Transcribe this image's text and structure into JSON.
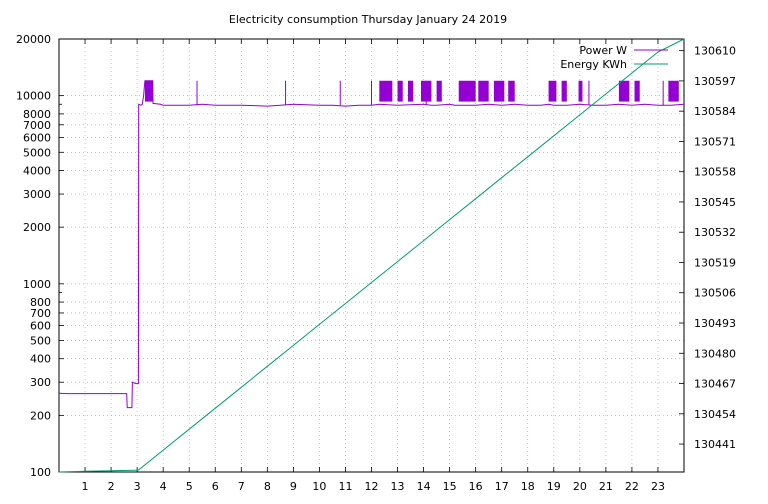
{
  "chart_data": {
    "type": "line",
    "title": "Electricity consumption Thursday January 24 2019",
    "xlabel": "",
    "ylabel": "",
    "y2label": "",
    "grid": true,
    "legend_position": "top-right",
    "x_range": [
      0,
      24
    ],
    "x_ticks": [
      1,
      2,
      3,
      4,
      5,
      6,
      7,
      8,
      9,
      10,
      11,
      12,
      13,
      14,
      15,
      16,
      17,
      18,
      19,
      20,
      21,
      22,
      23
    ],
    "y_scale": "log",
    "y_range": [
      100,
      20000
    ],
    "y_ticks": [
      100,
      200,
      300,
      400,
      500,
      600,
      700,
      800,
      1000,
      2000,
      3000,
      4000,
      5000,
      6000,
      7000,
      8000,
      10000,
      20000
    ],
    "y2_scale": "linear",
    "y2_range": [
      130429,
      130615
    ],
    "y2_ticks": [
      130441,
      130454,
      130467,
      130480,
      130493,
      130506,
      130519,
      130532,
      130545,
      130558,
      130571,
      130584,
      130597,
      130610
    ],
    "series": [
      {
        "name": "Power W",
        "axis": "y",
        "color": "#9400d3",
        "x": [
          0,
          0.3,
          1.0,
          2.0,
          2.6,
          2.62,
          2.8,
          2.82,
          2.95,
          3.05,
          3.06,
          3.15,
          3.2,
          3.25,
          3.3,
          3.6,
          3.61,
          3.9,
          4,
          5,
          5.5,
          6,
          7,
          8,
          8.5,
          9,
          10,
          10.5,
          11,
          11.5,
          12,
          12.3,
          13,
          14,
          14.3,
          14.5,
          15,
          15.2,
          16,
          16.5,
          17,
          17.5,
          18,
          18.5,
          18.8,
          19,
          19.5,
          20,
          20.5,
          21,
          21.5,
          22,
          22.5,
          23,
          23.5,
          24
        ],
        "values": [
          262,
          261,
          261,
          261,
          261,
          220,
          220,
          300,
          295,
          295,
          9000,
          8900,
          9000,
          10000,
          12000,
          12000,
          9100,
          9000,
          8900,
          8900,
          9000,
          8900,
          8900,
          8800,
          8900,
          9000,
          8900,
          8900,
          8800,
          8900,
          8900,
          9000,
          8900,
          9000,
          8900,
          8900,
          9000,
          8900,
          8900,
          9000,
          8900,
          9000,
          8900,
          8900,
          9000,
          8900,
          8900,
          9000,
          8900,
          8900,
          9000,
          8900,
          9000,
          8900,
          8900,
          9000
        ],
        "spike_bands": [
          [
            3.3,
            3.6
          ],
          [
            12.3,
            12.8
          ],
          [
            13.0,
            13.2
          ],
          [
            13.4,
            13.6
          ],
          [
            13.9,
            14.3
          ],
          [
            14.5,
            14.7
          ],
          [
            15.35,
            16.0
          ],
          [
            16.1,
            16.5
          ],
          [
            16.7,
            17.1
          ],
          [
            17.25,
            17.5
          ],
          [
            18.8,
            19.1
          ],
          [
            19.3,
            19.5
          ],
          [
            19.95,
            20.1
          ],
          [
            21.5,
            21.9
          ],
          [
            22.1,
            22.3
          ],
          [
            23.4,
            23.8
          ]
        ],
        "spike_lines": [
          5.3,
          8.7,
          10.8,
          12.0,
          14.1,
          20.35,
          23.2
        ],
        "spike_value": 12000
      },
      {
        "name": "Energy KWh",
        "axis": "y2",
        "color": "#009e73",
        "x": [
          0,
          1,
          2,
          3.05,
          4,
          5,
          6,
          7,
          8,
          9,
          10,
          11,
          12,
          13,
          14,
          15,
          16,
          17,
          18,
          19,
          20,
          21,
          22,
          23,
          24
        ],
        "values": [
          130429.0,
          130429.3,
          130429.5,
          130429.8,
          130438.4,
          130447.4,
          130456.4,
          130465.4,
          130474.4,
          130483.4,
          130492.4,
          130501.4,
          130510.4,
          130519.4,
          130528.4,
          130537.4,
          130546.4,
          130555.4,
          130564.4,
          130573.4,
          130582.4,
          130591.4,
          130600.4,
          130609.4,
          130615.0
        ]
      }
    ]
  }
}
